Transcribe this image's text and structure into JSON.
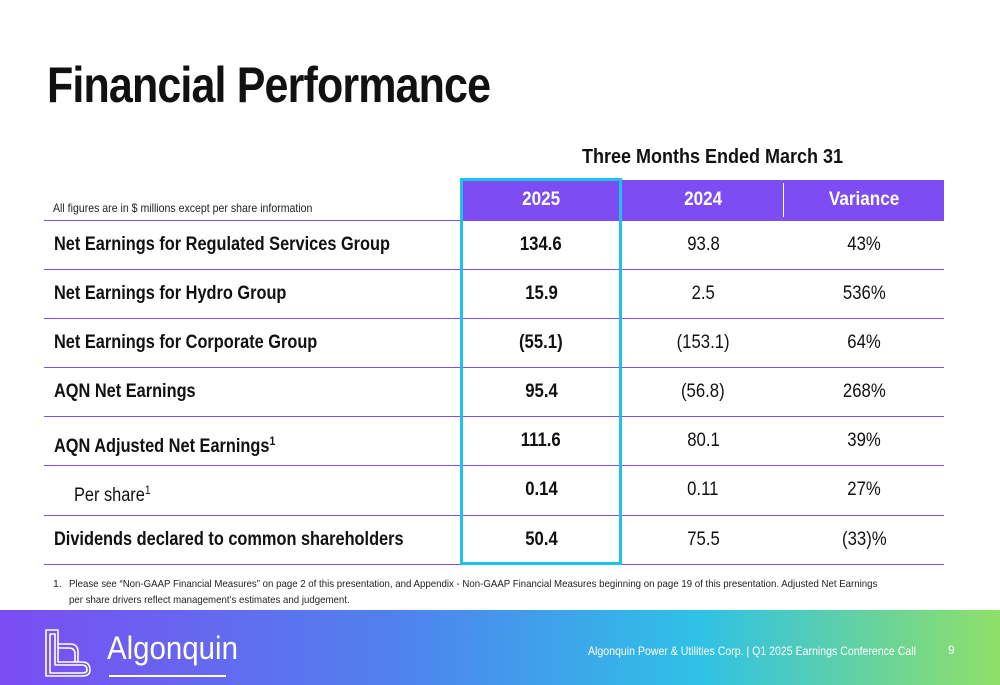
{
  "slide": {
    "title": "Financial Performance",
    "period_heading": "Three Months Ended March 31",
    "units_note": "All figures are in $  millions except per share information"
  },
  "table": {
    "headers": [
      "2025",
      "2024",
      "Variance"
    ],
    "rows": [
      {
        "label": "Net Earnings for Regulated Services Group",
        "sup": "",
        "v2025": "134.6",
        "v2024": "93.8",
        "variance": "43%"
      },
      {
        "label": "Net Earnings for Hydro Group",
        "sup": "",
        "v2025": "15.9",
        "v2024": "2.5",
        "variance": "536%"
      },
      {
        "label": "Net Earnings for Corporate Group",
        "sup": "",
        "v2025": "(55.1)",
        "v2024": "(153.1)",
        "variance": "64%"
      },
      {
        "label": "AQN Net Earnings",
        "sup": "",
        "v2025": "95.4",
        "v2024": "(56.8)",
        "variance": "268%"
      },
      {
        "label": "AQN Adjusted Net Earnings",
        "sup": "1",
        "v2025": "111.6",
        "v2024": "80.1",
        "variance": "39%"
      },
      {
        "label": "Per share",
        "sup": "1",
        "v2025": "0.14",
        "v2024": "0.11",
        "variance": "27%"
      },
      {
        "label": "Dividends declared to common shareholders",
        "sup": "",
        "v2025": "50.4",
        "v2024": "75.5",
        "variance": "(33)%"
      }
    ]
  },
  "footnote": {
    "number": "1.",
    "text": "Please see “Non-GAAP Financial Measures” on page 2 of this presentation, and Appendix - Non-GAAP Financial Measures beginning on page 19 of this presentation. Adjusted Net Earnings per share drivers reflect management’s estimates and judgement."
  },
  "footer": {
    "logo_text": "Algonquin",
    "caption": "Algonquin Power & Utilities Corp. | Q1 2025 Earnings Conference Call",
    "page_number": "9"
  },
  "colors": {
    "header_bg": "#7d4cf3",
    "highlight_border": "#1fc3ea",
    "row_rule": "#7d4cf3"
  }
}
